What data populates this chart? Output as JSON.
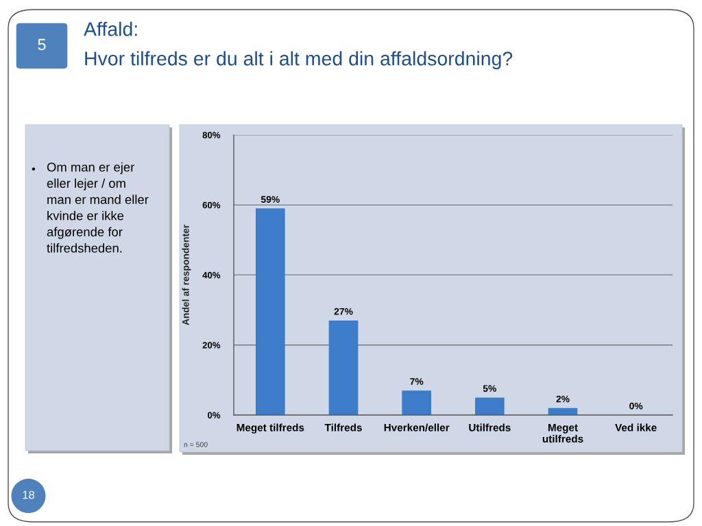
{
  "chart_data": {
    "type": "bar",
    "title": "Affald:",
    "subtitle": "Hvor tilfreds er du alt i alt med din affaldsordning?",
    "ylabel": "Andel af respondenter",
    "categories": [
      "Meget tilfreds",
      "Tilfreds",
      "Hverken/eller",
      "Utilfreds",
      "Meget\nutilfreds",
      "Ved ikke"
    ],
    "values": [
      59,
      27,
      7,
      5,
      2,
      0
    ],
    "value_labels": [
      "59%",
      "27%",
      "7%",
      "5%",
      "2%",
      "0%"
    ],
    "color": "#3d7cc9",
    "ylim": [
      0,
      80
    ],
    "yticks": [
      {
        "value": 0,
        "label": "0%"
      },
      {
        "value": 20,
        "label": "20%"
      },
      {
        "value": 40,
        "label": "40%"
      },
      {
        "value": 60,
        "label": "60%"
      },
      {
        "value": 80,
        "label": "80%"
      }
    ],
    "grid": "y",
    "annotations": [
      "n = 500",
      "•",
      "Om man er ejer\neller lejer / om\nman er mand eller\nkvinde er ikke\nafgørende for\ntilfredsheden.",
      "5",
      "18"
    ]
  }
}
